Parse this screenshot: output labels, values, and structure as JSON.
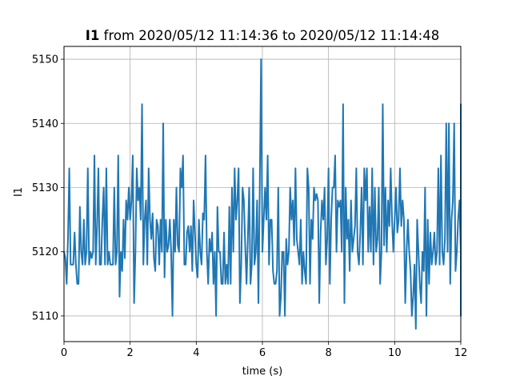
{
  "chart_data": {
    "type": "line",
    "title_bold": "I1",
    "title_rest": " from 2020/05/12 11:14:36 to 2020/05/12 11:14:48",
    "xlabel": "time (s)",
    "ylabel": "I1",
    "xlim": [
      0,
      12
    ],
    "ylim": [
      5106,
      5152
    ],
    "xticks": [
      0,
      2,
      4,
      6,
      8,
      10,
      12
    ],
    "yticks": [
      5110,
      5120,
      5130,
      5140,
      5150
    ],
    "grid": true,
    "line_color": "#1f77b4",
    "series": [
      {
        "x_start": 0,
        "x_step": 0.04,
        "values": [
          5120,
          5119,
          5115,
          5122,
          5133,
          5118,
          5118,
          5118,
          5123,
          5118,
          5115,
          5115,
          5127,
          5120,
          5118,
          5125,
          5118,
          5120,
          5133,
          5118,
          5120,
          5119,
          5120,
          5135,
          5118,
          5124,
          5133,
          5118,
          5118,
          5125,
          5130,
          5118,
          5133,
          5118,
          5120,
          5118,
          5118,
          5118,
          5130,
          5118,
          5120,
          5135,
          5113,
          5120,
          5117,
          5125,
          5119,
          5128,
          5125,
          5130,
          5125,
          5128,
          5135,
          5112,
          5120,
          5133,
          5128,
          5130,
          5125,
          5143,
          5118,
          5125,
          5128,
          5118,
          5133,
          5125,
          5122,
          5126,
          5119,
          5117,
          5125,
          5124,
          5118,
          5125,
          5120,
          5140,
          5116,
          5125,
          5120,
          5121,
          5125,
          5120,
          5110,
          5125,
          5120,
          5130,
          5121,
          5120,
          5133,
          5130,
          5135,
          5118,
          5118,
          5123,
          5124,
          5120,
          5124,
          5117,
          5128,
          5123,
          5118,
          5116,
          5125,
          5120,
          5118,
          5126,
          5125,
          5135,
          5120,
          5115,
          5122,
          5120,
          5123,
          5115,
          5120,
          5110,
          5127,
          5120,
          5120,
          5115,
          5115,
          5123,
          5115,
          5118,
          5115,
          5127,
          5115,
          5130,
          5120,
          5133,
          5125,
          5128,
          5133,
          5112,
          5118,
          5130,
          5128,
          5121,
          5115,
          5122,
          5130,
          5115,
          5118,
          5133,
          5118,
          5120,
          5128,
          5112,
          5130,
          5150,
          5120,
          5125,
          5130,
          5125,
          5135,
          5118,
          5125,
          5125,
          5117,
          5115,
          5115,
          5117,
          5130,
          5110,
          5113,
          5120,
          5120,
          5110,
          5122,
          5118,
          5120,
          5130,
          5125,
          5128,
          5121,
          5133,
          5122,
          5120,
          5118,
          5125,
          5115,
          5120,
          5117,
          5115,
          5133,
          5130,
          5115,
          5125,
          5122,
          5130,
          5128,
          5129,
          5128,
          5112,
          5123,
          5128,
          5125,
          5130,
          5118,
          5122,
          5133,
          5115,
          5125,
          5130,
          5130,
          5135,
          5120,
          5128,
          5127,
          5128,
          5120,
          5143,
          5112,
          5130,
          5122,
          5125,
          5117,
          5128,
          5120,
          5122,
          5124,
          5133,
          5120,
          5118,
          5123,
          5130,
          5118,
          5133,
          5128,
          5133,
          5120,
          5127,
          5120,
          5133,
          5118,
          5130,
          5120,
          5122,
          5130,
          5115,
          5120,
          5143,
          5121,
          5130,
          5120,
          5128,
          5124,
          5133,
          5125,
          5120,
          5125,
          5130,
          5123,
          5125,
          5133,
          5124,
          5128,
          5125,
          5112,
          5120,
          5125,
          5120,
          5117,
          5110,
          5113,
          5118,
          5108,
          5125,
          5120,
          5115,
          5112,
          5120,
          5117,
          5130,
          5110,
          5125,
          5115,
          5123,
          5118,
          5120,
          5123,
          5118,
          5120,
          5133,
          5118,
          5135,
          5120,
          5118,
          5122,
          5140,
          5120,
          5140,
          5115,
          5125,
          5128,
          5140,
          5117,
          5120,
          5125,
          5128,
          5120,
          5125,
          5126,
          5120,
          5124,
          5127,
          5125,
          5124,
          5125,
          5133,
          5118,
          5120,
          5123,
          5125,
          5117,
          5130,
          5120,
          5143,
          5115,
          5140,
          5122,
          5135,
          5124,
          5120,
          5115,
          5112,
          5125,
          5120,
          5125,
          5122,
          5120,
          5125,
          5115,
          5120,
          5117,
          5127,
          5120,
          5133,
          5130,
          5110
        ]
      }
    ]
  }
}
